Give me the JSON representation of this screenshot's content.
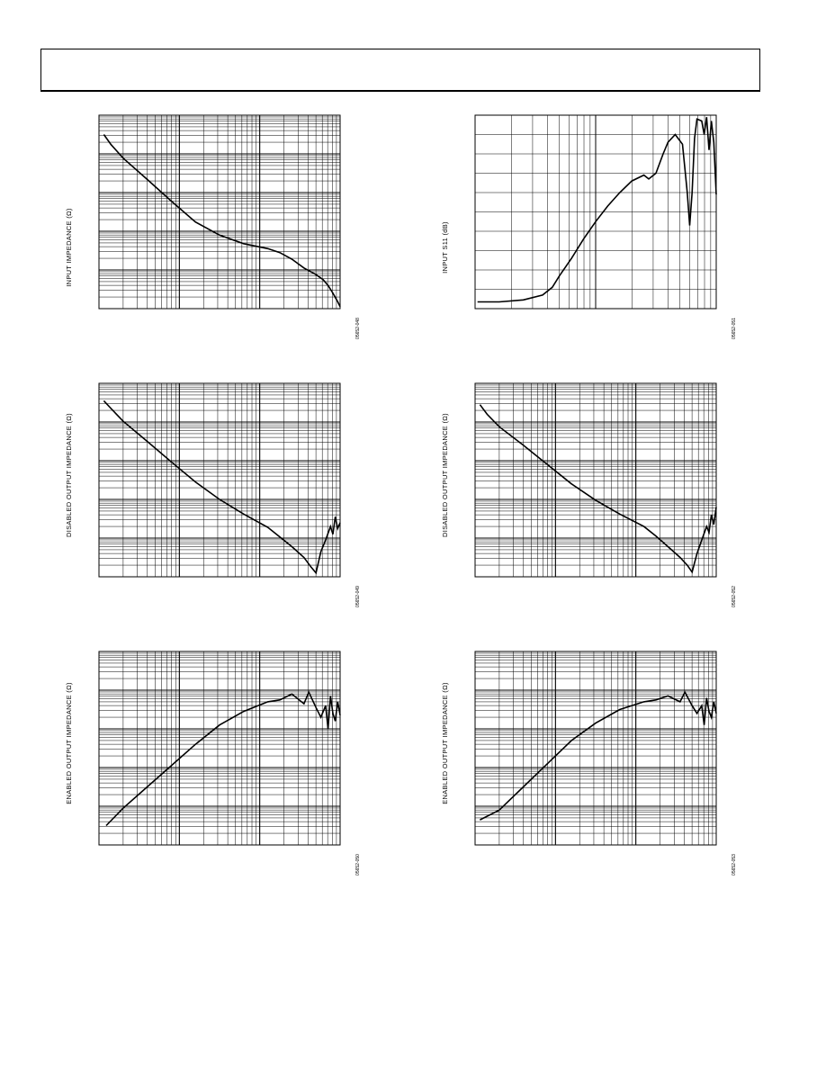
{
  "page": {
    "header_text": ""
  },
  "chart_data": [
    {
      "id": "p1",
      "type": "line",
      "ylabel": "INPUT IMPEDANCE (Ω)",
      "figure_id": "05652-048",
      "xscale": "log",
      "yscale": "log",
      "x_decades": 3,
      "y_decades": 5,
      "grid": true,
      "series": [
        {
          "x": [
            0.02,
            0.05,
            0.1,
            0.2,
            0.3,
            0.4,
            0.5,
            0.6,
            0.7,
            0.75,
            0.8,
            0.85,
            0.88,
            0.9,
            0.93,
            0.95,
            0.97,
            0.99,
            1.0
          ],
          "y": [
            4.5,
            4.24,
            3.89,
            3.34,
            2.78,
            2.24,
            1.9,
            1.68,
            1.55,
            1.45,
            1.28,
            1.05,
            0.95,
            0.88,
            0.75,
            0.6,
            0.4,
            0.18,
            0.05
          ]
        }
      ]
    },
    {
      "id": "p2",
      "type": "line",
      "ylabel": "INPUT S11 (dB)",
      "figure_id": "05652-051",
      "xscale": "log",
      "yscale": "linear",
      "x_decades": 2,
      "y_divisions": 10,
      "grid": true,
      "series": [
        {
          "x": [
            0.01,
            0.1,
            0.2,
            0.28,
            0.32,
            0.35,
            0.4,
            0.45,
            0.5,
            0.55,
            0.6,
            0.65,
            0.7,
            0.72,
            0.75,
            0.78,
            0.8,
            0.83,
            0.86,
            0.88,
            0.89,
            0.9,
            0.91,
            0.92,
            0.94,
            0.95,
            0.96,
            0.97,
            0.98,
            0.99,
            1.0
          ],
          "y": [
            0.35,
            0.35,
            0.45,
            0.7,
            1.1,
            1.7,
            2.6,
            3.6,
            4.5,
            5.3,
            6,
            6.6,
            6.9,
            6.7,
            7.0,
            8.0,
            8.6,
            9.0,
            8.5,
            6.0,
            4.3,
            6.0,
            8.8,
            9.8,
            9.7,
            9.0,
            9.9,
            8.2,
            9.7,
            8.6,
            5.9
          ]
        }
      ]
    },
    {
      "id": "p3",
      "type": "line",
      "ylabel": "DISABLED OUTPUT IMPEDANCE (Ω)",
      "figure_id": "05652-049",
      "xscale": "log",
      "yscale": "log",
      "x_decades": 3,
      "y_decades": 5,
      "grid": true,
      "series": [
        {
          "x": [
            0.02,
            0.05,
            0.1,
            0.2,
            0.3,
            0.4,
            0.5,
            0.6,
            0.7,
            0.75,
            0.8,
            0.85,
            0.88,
            0.9,
            0.92,
            0.94,
            0.96,
            0.97,
            0.98,
            0.99,
            1.0
          ],
          "y": [
            4.55,
            4.35,
            4.02,
            3.5,
            2.97,
            2.45,
            2.0,
            1.62,
            1.28,
            1.03,
            0.78,
            0.5,
            0.25,
            0.1,
            0.65,
            0.95,
            1.3,
            1.1,
            1.55,
            1.25,
            1.4
          ]
        }
      ]
    },
    {
      "id": "p4",
      "type": "line",
      "ylabel": "DISABLED OUTPUT IMPEDANCE (Ω)",
      "figure_id": "05652-052",
      "xscale": "log",
      "yscale": "log",
      "x_decades": 3,
      "y_decades": 5,
      "grid": true,
      "series": [
        {
          "x": [
            0.02,
            0.05,
            0.1,
            0.2,
            0.3,
            0.4,
            0.5,
            0.6,
            0.7,
            0.75,
            0.8,
            0.85,
            0.88,
            0.9,
            0.92,
            0.94,
            0.96,
            0.97,
            0.98,
            0.99,
            1.0
          ],
          "y": [
            4.45,
            4.2,
            3.88,
            3.4,
            2.9,
            2.4,
            1.98,
            1.62,
            1.3,
            1.05,
            0.78,
            0.5,
            0.3,
            0.12,
            0.6,
            0.95,
            1.3,
            1.15,
            1.6,
            1.35,
            1.8
          ]
        }
      ]
    },
    {
      "id": "p5",
      "type": "line",
      "ylabel": "ENABLED OUTPUT IMPEDANCE (Ω)",
      "figure_id": "05652-050",
      "xscale": "log",
      "yscale": "log",
      "x_decades": 3,
      "y_decades": 5,
      "grid": true,
      "series": [
        {
          "x": [
            0.03,
            0.1,
            0.2,
            0.3,
            0.4,
            0.5,
            0.6,
            0.7,
            0.75,
            0.8,
            0.85,
            0.87,
            0.9,
            0.92,
            0.94,
            0.95,
            0.96,
            0.97,
            0.98,
            0.99,
            1.0
          ],
          "y": [
            0.5,
            0.95,
            1.5,
            2.05,
            2.6,
            3.1,
            3.45,
            3.7,
            3.75,
            3.9,
            3.65,
            3.95,
            3.55,
            3.3,
            3.6,
            3.0,
            3.85,
            3.4,
            3.2,
            3.7,
            3.35
          ]
        }
      ]
    },
    {
      "id": "p6",
      "type": "line",
      "ylabel": "ENABLED OUTPUT IMPEDANCE (Ω)",
      "figure_id": "05652-053",
      "xscale": "log",
      "yscale": "log",
      "x_decades": 3,
      "y_decades": 5,
      "grid": true,
      "series": [
        {
          "x": [
            0.02,
            0.1,
            0.2,
            0.3,
            0.4,
            0.5,
            0.6,
            0.7,
            0.75,
            0.8,
            0.85,
            0.87,
            0.9,
            0.92,
            0.94,
            0.95,
            0.96,
            0.97,
            0.98,
            0.99,
            1.0
          ],
          "y": [
            0.65,
            0.9,
            1.5,
            2.1,
            2.7,
            3.15,
            3.5,
            3.7,
            3.75,
            3.85,
            3.7,
            3.95,
            3.6,
            3.4,
            3.6,
            3.1,
            3.8,
            3.45,
            3.3,
            3.7,
            3.4
          ]
        }
      ]
    }
  ]
}
